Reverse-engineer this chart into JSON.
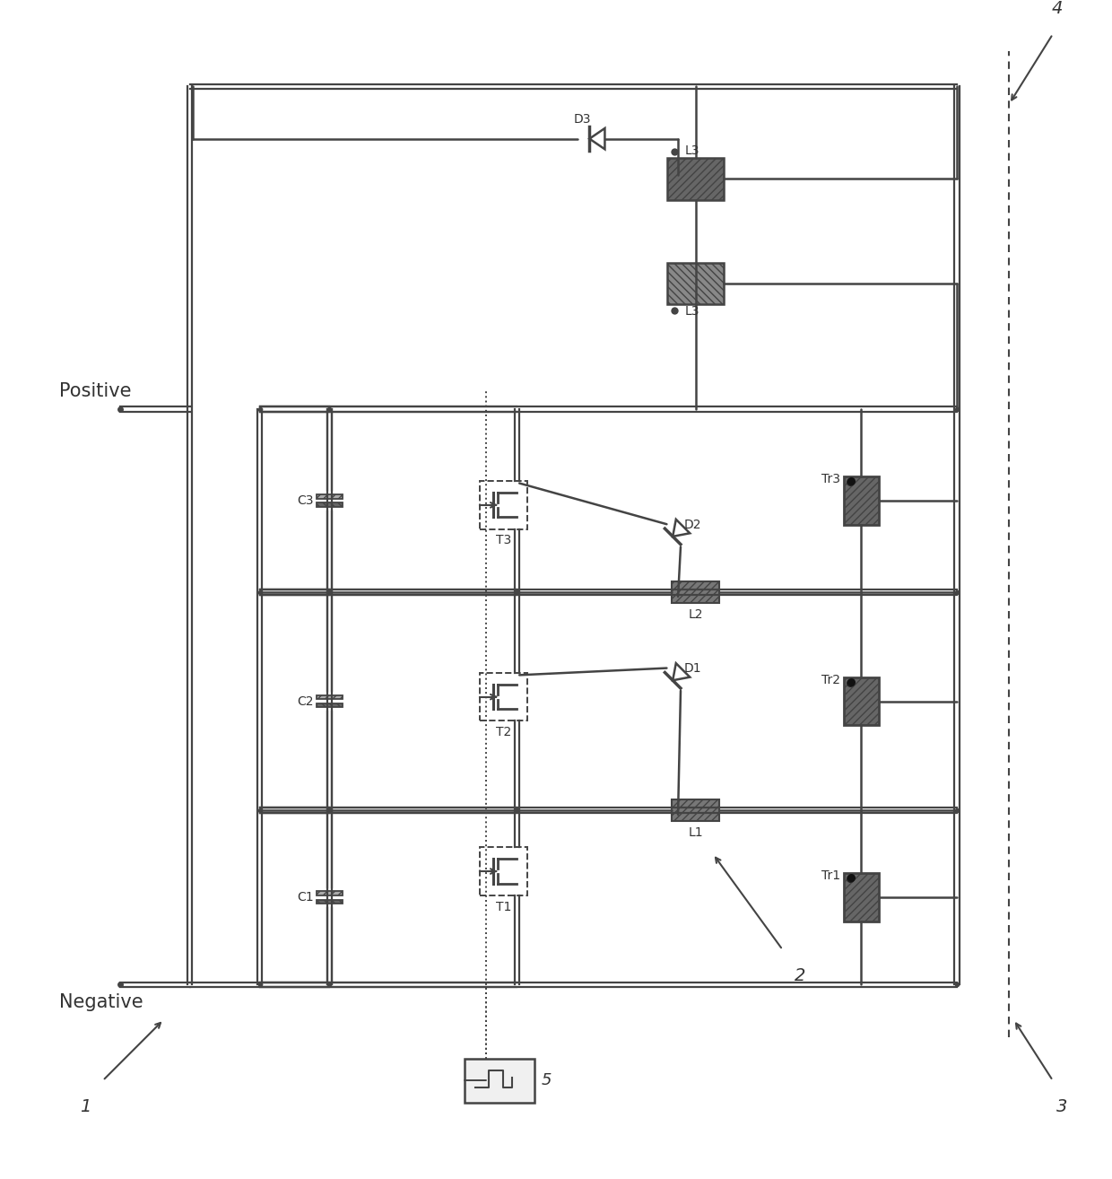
{
  "fig_width": 12.4,
  "fig_height": 13.14,
  "lc": "#444444",
  "lw": 2.0,
  "lw_thin": 1.4,
  "cap_color": "#666666",
  "ind_color": "#555555",
  "tr_color": "#555555",
  "text_color": "#333333",
  "pos_label": "Positive",
  "neg_label": "Negative",
  "components": {
    "C1_label": "C1",
    "C2_label": "C2",
    "C3_label": "C3",
    "T1_label": "T1",
    "T2_label": "T2",
    "T3_label": "T3",
    "L1_label": "L1",
    "L2_label": "L2",
    "L3_label": "L3",
    "D1_label": "D1",
    "D2_label": "D2",
    "D3_label": "D3",
    "Tr1_label": "Tr1",
    "Tr2_label": "Tr2",
    "Tr3_label": "Tr3",
    "pwm_label": "5",
    "ref1": "1",
    "ref2": "2",
    "ref3": "3",
    "ref4": "4"
  }
}
